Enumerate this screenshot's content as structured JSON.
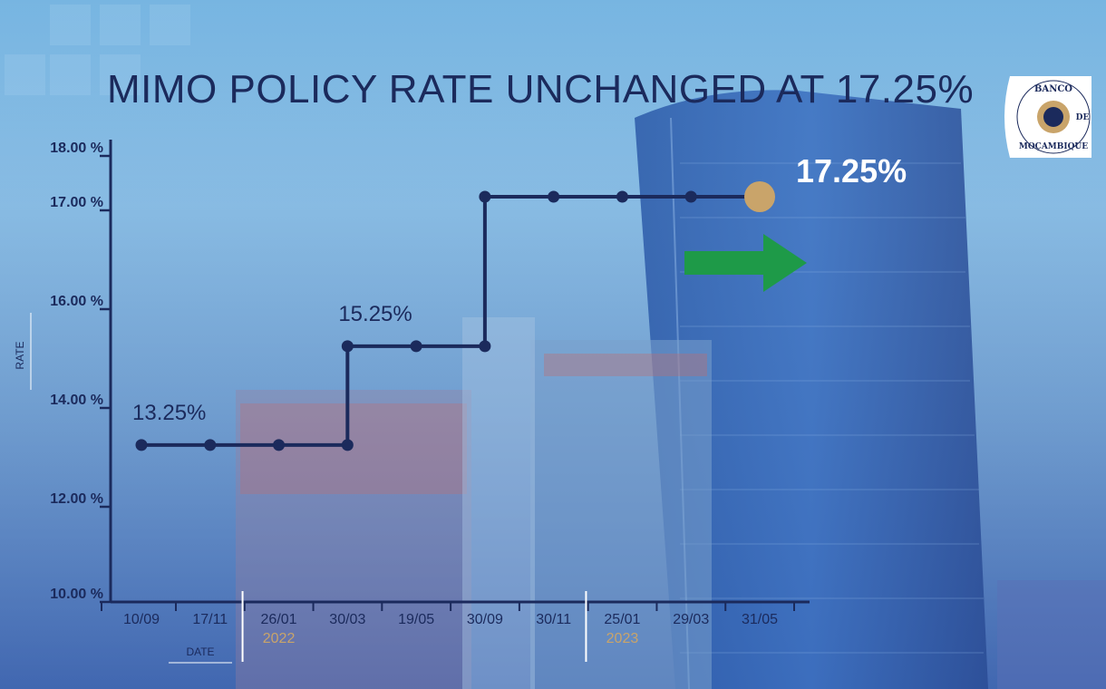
{
  "title": "MIMO POLICY RATE UNCHANGED AT 17.25%",
  "logo": {
    "text_top": "BANCO",
    "text_mid": "DE",
    "text_bottom": "MOÇAMBIQUE"
  },
  "colors": {
    "line": "#1b2a5c",
    "highlight": "#c9a46a",
    "arrow": "#1e9a48",
    "year_label": "#c9a46a"
  },
  "chart_data": {
    "type": "line",
    "step": true,
    "title": "MIMO POLICY RATE UNCHANGED AT 17.25%",
    "ylabel": "RATE",
    "xlabel": "DATE",
    "ylim": [
      10,
      18
    ],
    "y_ticks": [
      "10.00 %",
      "12.00 %",
      "14.00 %",
      "16.00 %",
      "17.00 %",
      "18.00 %"
    ],
    "y_tick_values": [
      10,
      12,
      14,
      16,
      17,
      18
    ],
    "x_tick_labels": [
      "10/09",
      "17/11",
      "26/01",
      "30/03",
      "19/05",
      "30/09",
      "30/11",
      "25/01",
      "29/03",
      "31/05"
    ],
    "year_labels": [
      {
        "label": "2022",
        "at": "26/01"
      },
      {
        "label": "2023",
        "at": "25/01"
      }
    ],
    "series": [
      {
        "values": [
          13.25,
          13.25,
          13.25,
          13.25,
          15.25,
          15.25,
          17.25,
          17.25,
          17.25,
          17.25
        ],
        "points_x": [
          "10/09",
          "17/11",
          "26/01",
          "30/03",
          "30/03",
          "19/05",
          "30/09",
          "30/09",
          "30/11",
          "25/01",
          "29/03",
          "31/05"
        ],
        "points_y": [
          13.25,
          13.25,
          13.25,
          13.25,
          15.25,
          15.25,
          15.25,
          17.25,
          17.25,
          17.25,
          17.25,
          17.25
        ]
      }
    ],
    "annotations": [
      {
        "text": "13.25%",
        "x": "10/09",
        "y": 13.25
      },
      {
        "text": "15.25%",
        "x": "30/03",
        "y": 15.25
      },
      {
        "text": "17.25%",
        "x": "31/05",
        "y": 17.25,
        "style": "highlight"
      }
    ]
  }
}
